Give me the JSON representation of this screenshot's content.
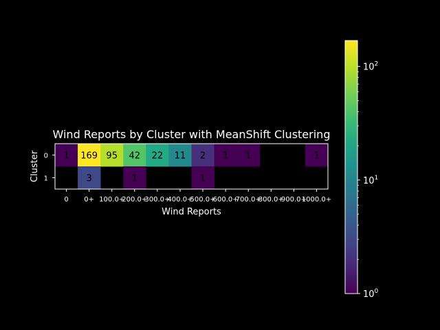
{
  "chart_data": {
    "type": "heatmap",
    "title": "Wind Reports by Cluster with MeanShift Clustering",
    "xlabel": "Wind Reports",
    "ylabel": "Cluster",
    "x_categories": [
      "0",
      "0+",
      "100.0+",
      "200.0+",
      "300.0+",
      "400.0+",
      "500.0+",
      "600.0+",
      "700.0+",
      "800.0+",
      "900.0+",
      "1000.0+"
    ],
    "y_categories": [
      "0",
      "1"
    ],
    "values": [
      [
        1,
        169,
        95,
        42,
        22,
        11,
        2,
        1,
        1,
        null,
        null,
        1
      ],
      [
        null,
        3,
        null,
        1,
        null,
        null,
        1,
        null,
        null,
        null,
        null,
        null
      ]
    ],
    "colorscale": "viridis",
    "color_scale_type": "log",
    "color_range": [
      1,
      169
    ],
    "colorbar_ticks": [
      {
        "value": 1,
        "base": "10",
        "exp": "0"
      },
      {
        "value": 10,
        "base": "10",
        "exp": "1"
      },
      {
        "value": 100,
        "base": "10",
        "exp": "2"
      }
    ],
    "background": "#000000",
    "text_color": "#ffffff"
  }
}
